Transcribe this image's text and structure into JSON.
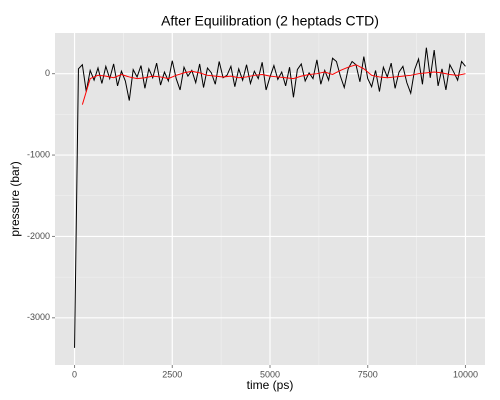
{
  "chart_data": {
    "type": "line",
    "title": "After Equilibration (2 heptads CTD)",
    "xlabel": "time (ps)",
    "ylabel": "pressure (bar)",
    "xlim": [
      -500,
      10500
    ],
    "ylim": [
      -3580,
      500
    ],
    "xticks": [
      0,
      2500,
      5000,
      7500,
      10000
    ],
    "yticks": [
      -3000,
      -2000,
      -1000,
      0
    ],
    "grid": true,
    "series": [
      {
        "color": "#000000",
        "x": [
          0,
          100,
          200,
          300,
          400,
          500,
          600,
          700,
          800,
          900,
          1000,
          1100,
          1200,
          1300,
          1400,
          1500,
          1600,
          1700,
          1800,
          1900,
          2000,
          2100,
          2200,
          2300,
          2400,
          2500,
          2600,
          2700,
          2800,
          2900,
          3000,
          3100,
          3200,
          3300,
          3400,
          3500,
          3600,
          3700,
          3800,
          3900,
          4000,
          4100,
          4200,
          4300,
          4400,
          4500,
          4600,
          4700,
          4800,
          4900,
          5000,
          5100,
          5200,
          5300,
          5400,
          5500,
          5600,
          5700,
          5800,
          5900,
          6000,
          6100,
          6200,
          6300,
          6400,
          6500,
          6600,
          6700,
          6800,
          6900,
          7000,
          7100,
          7200,
          7300,
          7400,
          7500,
          7600,
          7700,
          7800,
          7900,
          8000,
          8100,
          8200,
          8300,
          8400,
          8500,
          8600,
          8700,
          8800,
          8900,
          9000,
          9100,
          9200,
          9300,
          9400,
          9500,
          9600,
          9700,
          9800,
          9900,
          10000
        ],
        "values": [
          -3370,
          60,
          110,
          -220,
          40,
          -80,
          70,
          -120,
          90,
          -60,
          120,
          -150,
          30,
          -90,
          -330,
          50,
          -40,
          100,
          -180,
          60,
          -50,
          130,
          -140,
          20,
          -90,
          160,
          -60,
          -200,
          80,
          -30,
          40,
          -110,
          120,
          -170,
          70,
          10,
          -130,
          150,
          -50,
          -20,
          90,
          -160,
          60,
          -80,
          110,
          -120,
          30,
          -60,
          140,
          -200,
          -40,
          100,
          -70,
          20,
          -150,
          80,
          -290,
          50,
          120,
          -90,
          10,
          -60,
          170,
          -130,
          40,
          -80,
          190,
          150,
          -30,
          -170,
          60,
          150,
          110,
          -100,
          210,
          -60,
          -160,
          40,
          -220,
          80,
          -40,
          130,
          -180,
          20,
          90,
          -110,
          -240,
          50,
          180,
          -130,
          320,
          -50,
          290,
          -150,
          60,
          -200,
          110,
          20,
          -80,
          150,
          90
        ]
      },
      {
        "color": "#ff0000",
        "x": [
          200,
          400,
          600,
          800,
          1000,
          1200,
          1400,
          1600,
          1800,
          2000,
          2200,
          2400,
          2600,
          2800,
          3000,
          3200,
          3400,
          3600,
          3800,
          4000,
          4200,
          4400,
          4600,
          4800,
          5000,
          5200,
          5400,
          5600,
          5800,
          6000,
          6200,
          6400,
          6600,
          6800,
          7000,
          7200,
          7400,
          7600,
          7800,
          8000,
          8200,
          8400,
          8600,
          8800,
          9000,
          9200,
          9400,
          9600,
          9800,
          10000
        ],
        "values": [
          -380,
          -60,
          -20,
          -30,
          -50,
          -10,
          -40,
          -60,
          -50,
          -30,
          -40,
          -60,
          -20,
          10,
          30,
          10,
          -20,
          -30,
          -40,
          -30,
          -50,
          -40,
          -20,
          -10,
          -30,
          -40,
          -50,
          -60,
          -30,
          -10,
          0,
          20,
          -10,
          40,
          80,
          110,
          60,
          -20,
          -40,
          -50,
          -40,
          -30,
          -20,
          0,
          10,
          20,
          10,
          -10,
          -20,
          0
        ]
      }
    ]
  }
}
